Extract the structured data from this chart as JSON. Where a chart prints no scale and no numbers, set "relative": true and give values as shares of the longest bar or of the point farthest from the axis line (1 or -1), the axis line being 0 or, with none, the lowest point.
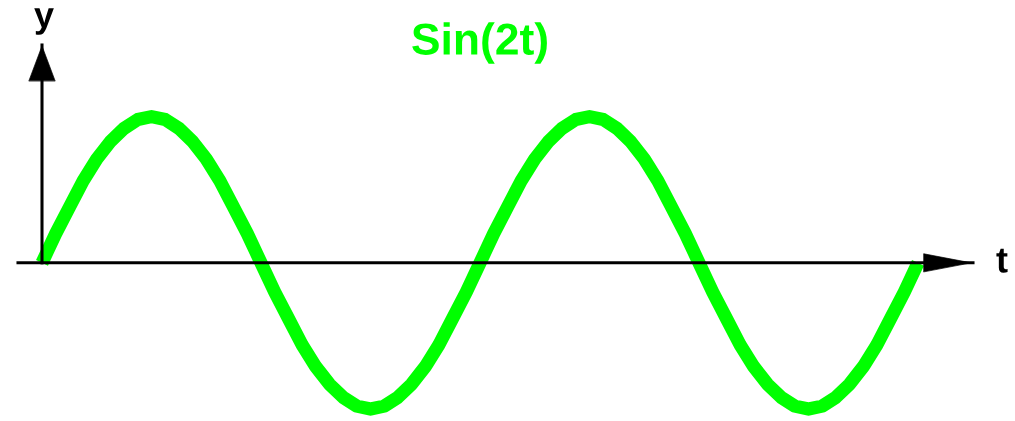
{
  "chart_data": {
    "type": "line",
    "title": "Sin(2t)",
    "xlabel": "t",
    "ylabel": "y",
    "relative": true,
    "categories": [
      null,
      null,
      null,
      null,
      null,
      null,
      null,
      null,
      null,
      null,
      null,
      null,
      null,
      null,
      null,
      null,
      null,
      null,
      null,
      null,
      null,
      null,
      null,
      null,
      null,
      null,
      null,
      null,
      null,
      null,
      null,
      null,
      null,
      null,
      null,
      null,
      null,
      null,
      null,
      null,
      null,
      null,
      null,
      null,
      null,
      null,
      null,
      null,
      null,
      null,
      null,
      null,
      null,
      null,
      null,
      null,
      null,
      null,
      null,
      null,
      null,
      null,
      null,
      null,
      null
    ],
    "series": [
      {
        "color": "#00ff00",
        "values": [
          0,
          0.2,
          0.38,
          0.56,
          0.71,
          0.83,
          0.92,
          0.98,
          1,
          0.98,
          0.92,
          0.83,
          0.71,
          0.56,
          0.38,
          0.2,
          0,
          -0.2,
          -0.38,
          -0.56,
          -0.71,
          -0.83,
          -0.92,
          -0.98,
          -1,
          -0.98,
          -0.92,
          -0.83,
          -0.71,
          -0.56,
          -0.38,
          -0.2,
          0,
          0.2,
          0.38,
          0.56,
          0.71,
          0.83,
          0.92,
          0.98,
          1,
          0.98,
          0.92,
          0.83,
          0.71,
          0.56,
          0.38,
          0.2,
          0,
          -0.2,
          -0.38,
          -0.56,
          -0.71,
          -0.83,
          -0.92,
          -0.98,
          -1,
          -0.98,
          -0.92,
          -0.83,
          -0.71,
          -0.56,
          -0.38,
          -0.2,
          0
        ]
      }
    ]
  }
}
